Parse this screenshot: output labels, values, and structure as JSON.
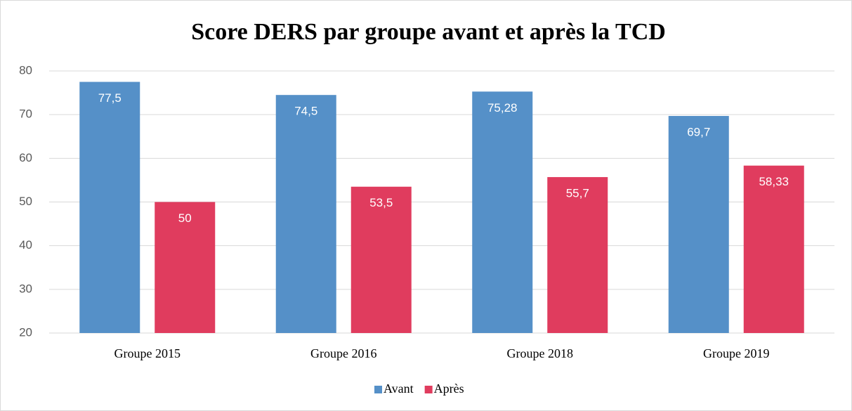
{
  "chart_data": {
    "type": "bar",
    "title": "Score DERS par groupe avant et après la TCD",
    "categories": [
      "Groupe 2015",
      "Groupe 2016",
      "Groupe 2018",
      "Groupe 2019"
    ],
    "series": [
      {
        "name": "Avant",
        "color": "#5590c8",
        "values": [
          77.5,
          74.5,
          75.28,
          69.7
        ],
        "value_labels": [
          "77,5",
          "74,5",
          "75,28",
          "69,7"
        ]
      },
      {
        "name": "Après",
        "color": "#e03c5e",
        "values": [
          50,
          53.5,
          55.7,
          58.33
        ],
        "value_labels": [
          "50",
          "53,5",
          "55,7",
          "58,33"
        ]
      }
    ],
    "ylim": [
      20,
      80
    ],
    "yticks": [
      20,
      30,
      40,
      50,
      60,
      70,
      80
    ],
    "grid": true,
    "legend": "bottom"
  }
}
